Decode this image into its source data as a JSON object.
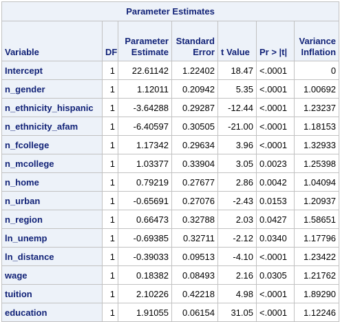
{
  "table": {
    "title": "Parameter Estimates",
    "headers": {
      "variable": "Variable",
      "df": "DF",
      "estimate_line1": "Parameter",
      "estimate_line2": "Estimate",
      "stderr_line1": "Standard",
      "stderr_line2": "Error",
      "tvalue": "t Value",
      "pvalue": "Pr > |t|",
      "vif_line1": "Variance",
      "vif_line2": "Inflation"
    },
    "rows": [
      {
        "variable": "Intercept",
        "df": "1",
        "estimate": "22.61142",
        "stderr": "1.22402",
        "tvalue": "18.47",
        "pvalue": "<.0001",
        "vif": "0"
      },
      {
        "variable": "n_gender",
        "df": "1",
        "estimate": "1.12011",
        "stderr": "0.20942",
        "tvalue": "5.35",
        "pvalue": "<.0001",
        "vif": "1.00692"
      },
      {
        "variable": "n_ethnicity_hispanic",
        "df": "1",
        "estimate": "-3.64288",
        "stderr": "0.29287",
        "tvalue": "-12.44",
        "pvalue": "<.0001",
        "vif": "1.23237"
      },
      {
        "variable": "n_ethnicity_afam",
        "df": "1",
        "estimate": "-6.40597",
        "stderr": "0.30505",
        "tvalue": "-21.00",
        "pvalue": "<.0001",
        "vif": "1.18153"
      },
      {
        "variable": "n_fcollege",
        "df": "1",
        "estimate": "1.17342",
        "stderr": "0.29634",
        "tvalue": "3.96",
        "pvalue": "<.0001",
        "vif": "1.32933"
      },
      {
        "variable": "n_mcollege",
        "df": "1",
        "estimate": "1.03377",
        "stderr": "0.33904",
        "tvalue": "3.05",
        "pvalue": "0.0023",
        "vif": "1.25398"
      },
      {
        "variable": "n_home",
        "df": "1",
        "estimate": "0.79219",
        "stderr": "0.27677",
        "tvalue": "2.86",
        "pvalue": "0.0042",
        "vif": "1.04094"
      },
      {
        "variable": "n_urban",
        "df": "1",
        "estimate": "-0.65691",
        "stderr": "0.27076",
        "tvalue": "-2.43",
        "pvalue": "0.0153",
        "vif": "1.20937"
      },
      {
        "variable": "n_region",
        "df": "1",
        "estimate": "0.66473",
        "stderr": "0.32788",
        "tvalue": "2.03",
        "pvalue": "0.0427",
        "vif": "1.58651"
      },
      {
        "variable": "ln_unemp",
        "df": "1",
        "estimate": "-0.69385",
        "stderr": "0.32711",
        "tvalue": "-2.12",
        "pvalue": "0.0340",
        "vif": "1.17796"
      },
      {
        "variable": "ln_distance",
        "df": "1",
        "estimate": "-0.39033",
        "stderr": "0.09513",
        "tvalue": "-4.10",
        "pvalue": "<.0001",
        "vif": "1.23422"
      },
      {
        "variable": "wage",
        "df": "1",
        "estimate": "0.18382",
        "stderr": "0.08493",
        "tvalue": "2.16",
        "pvalue": "0.0305",
        "vif": "1.21762"
      },
      {
        "variable": "tuition",
        "df": "1",
        "estimate": "2.10226",
        "stderr": "0.42218",
        "tvalue": "4.98",
        "pvalue": "<.0001",
        "vif": "1.89290"
      },
      {
        "variable": "education",
        "df": "1",
        "estimate": "1.91055",
        "stderr": "0.06154",
        "tvalue": "31.05",
        "pvalue": "<.0001",
        "vif": "1.12246"
      }
    ]
  },
  "colors": {
    "header_background": "#edf2f9",
    "header_text": "#112277",
    "border": "#c1c1c1"
  }
}
